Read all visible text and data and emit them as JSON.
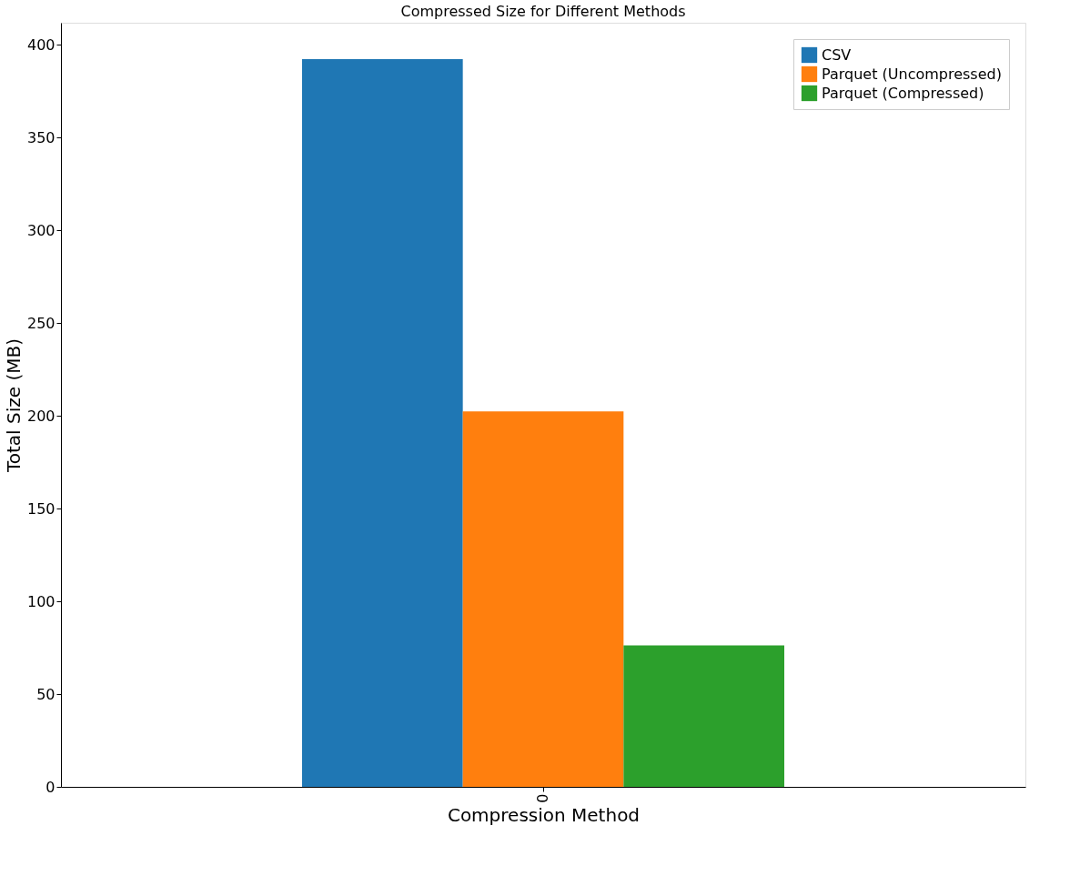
{
  "chart_data": {
    "type": "bar",
    "title": "Compressed Size for Different Methods",
    "xlabel": "Compression Method",
    "ylabel": "Total Size (MB)",
    "categories": [
      "0"
    ],
    "series": [
      {
        "name": "CSV",
        "color": "#1f77b4",
        "values": [
          392.4
        ]
      },
      {
        "name": " Parquet (Uncompressed)",
        "color": "#ff7f0e",
        "values": [
          202.4
        ]
      },
      {
        "name": " Parquet (Compressed)",
        "color": "#2ca02c",
        "values": [
          76.3
        ]
      }
    ],
    "ylim": [
      0,
      412
    ],
    "yticks": [
      0,
      50,
      100,
      150,
      200,
      250,
      300,
      350,
      400
    ],
    "grid": false,
    "legend": "top right"
  }
}
